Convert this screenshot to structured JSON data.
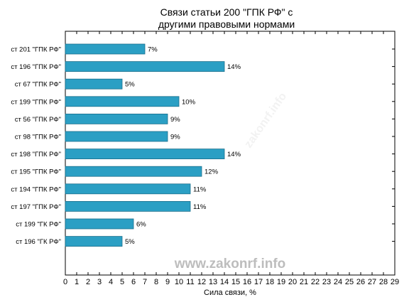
{
  "chart_data": {
    "type": "bar",
    "orientation": "horizontal",
    "title_lines": [
      "Связи статьи 200 \"ГПК РФ\" с",
      "другими правовыми нормами"
    ],
    "xlabel": "Сила связи, %",
    "ylabel": "",
    "xlim": [
      0,
      29
    ],
    "x_ticks": [
      0,
      1,
      2,
      3,
      4,
      5,
      6,
      7,
      8,
      9,
      10,
      11,
      12,
      13,
      14,
      15,
      16,
      17,
      18,
      19,
      20,
      21,
      22,
      23,
      24,
      25,
      26,
      27,
      28,
      29
    ],
    "categories": [
      "ст 201 \"ГПК РФ\"",
      "ст 196 \"ГПК РФ\"",
      "ст 67 \"ГПК РФ\"",
      "ст 199 \"ГПК РФ\"",
      "ст 56 \"ГПК РФ\"",
      "ст 98 \"ГПК РФ\"",
      "ст 198 \"ГПК РФ\"",
      "ст 195 \"ГПК РФ\"",
      "ст 194 \"ГПК РФ\"",
      "ст 197 \"ГПК РФ\"",
      "ст 199 \"ГК РФ\"",
      "ст 196 \"ГК РФ\""
    ],
    "values": [
      7,
      14,
      5,
      10,
      9,
      9,
      14,
      12,
      11,
      11,
      6,
      5
    ],
    "value_labels": [
      "7%",
      "14%",
      "5%",
      "10%",
      "9%",
      "9%",
      "14%",
      "12%",
      "11%",
      "11%",
      "6%",
      "5%"
    ],
    "bar_color": "#2b9fc4",
    "bar_edge_color": "#1b6f8c",
    "grid": false,
    "legend": "none"
  },
  "watermark": "www.zakonrf.info",
  "watermark_faint": "zakonrf.info"
}
